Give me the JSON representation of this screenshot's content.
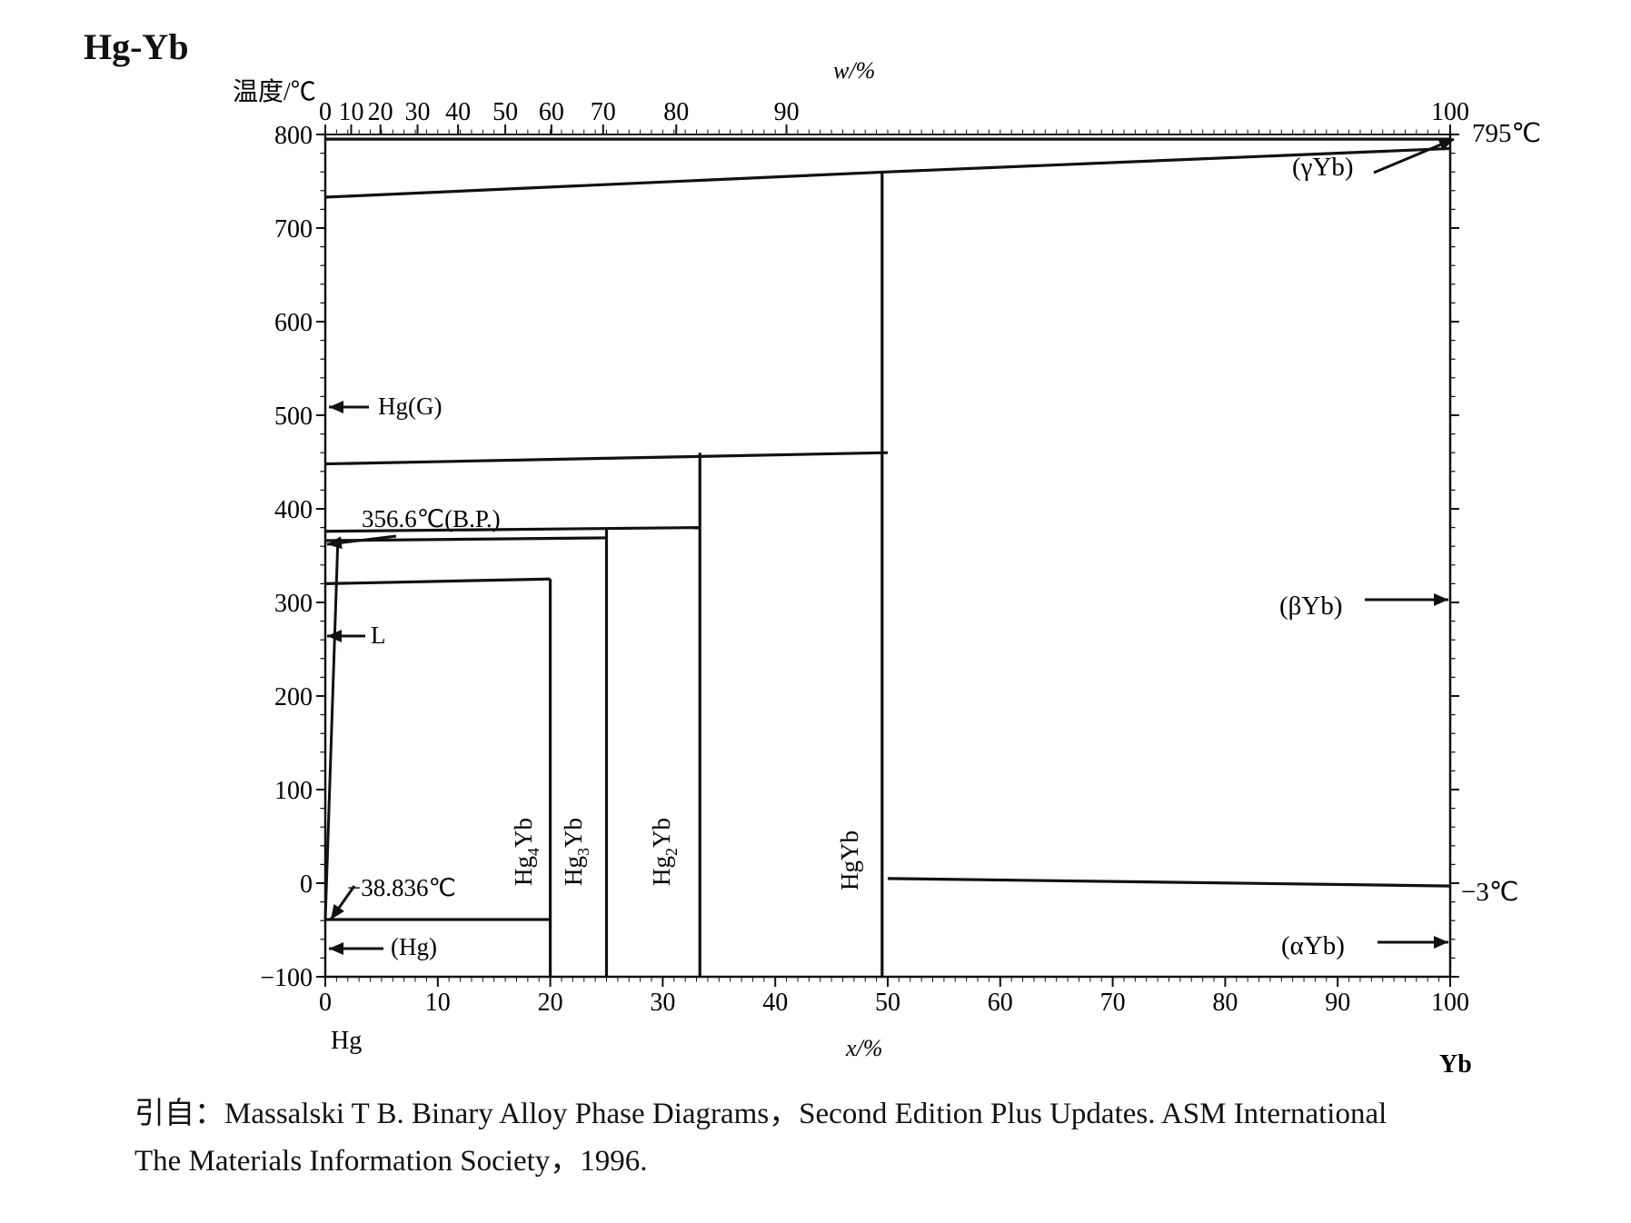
{
  "title": "Hg-Yb",
  "axes": {
    "y_label": "温度/℃",
    "bottom_label": "x/%",
    "top_label": "w/%",
    "y_ticks": [
      "800",
      "700",
      "600",
      "500",
      "400",
      "300",
      "200",
      "100",
      "0",
      "−100"
    ],
    "bottom_ticks": [
      "0",
      "10",
      "20",
      "30",
      "40",
      "50",
      "60",
      "70",
      "80",
      "90",
      "100"
    ],
    "top_ticks": [
      "0",
      "10",
      "20",
      "30",
      "40",
      "50",
      "60",
      "70",
      "80",
      "90",
      "100"
    ],
    "left_end": "Hg",
    "right_end": "Yb"
  },
  "phase_labels": {
    "hg_gas": "Hg(G)",
    "liquid": "L",
    "hg_solid": "(Hg)",
    "gamma_yb": "(γYb)",
    "beta_yb": "(βYb)",
    "alpha_yb": "(αYb)"
  },
  "compounds": [
    {
      "base": "Hg",
      "sub": "4",
      "tail": "Yb"
    },
    {
      "base": "Hg",
      "sub": "3",
      "tail": "Yb"
    },
    {
      "base": "Hg",
      "sub": "2",
      "tail": "Yb"
    },
    {
      "base": "HgYb",
      "sub": "",
      "tail": ""
    }
  ],
  "temperature_notes": {
    "melting_yb": "795℃",
    "boiling_hg": "356.6℃(B.P.)",
    "melting_hg": "−38.836℃",
    "transition_yb": "−3℃"
  },
  "citation": {
    "line1": "引自：Massalski T B. Binary Alloy Phase Diagrams，Second Edition Plus Updates. ASM International",
    "line2": "The Materials Information Society，1996."
  },
  "chart_data": {
    "type": "phase-diagram",
    "x_axis": "x/% (at.% Yb)",
    "top_axis": "w/% (wt.% Yb)",
    "xlim": [
      0,
      100
    ],
    "ylim": [
      -100,
      800
    ],
    "top_tick_positions_at_pct": [
      0,
      2.3,
      4.9,
      8.2,
      11.8,
      16.0,
      20.1,
      24.7,
      31.2,
      41.0,
      100
    ],
    "boundaries": [
      {
        "name": "Yb liquidus top",
        "points": [
          [
            0,
            795
          ],
          [
            100,
            795
          ]
        ]
      },
      {
        "name": "gas/liquid upper",
        "points": [
          [
            0,
            733
          ],
          [
            50,
            760
          ],
          [
            100,
            785
          ]
        ]
      },
      {
        "name": "HgYb peritectic",
        "points": [
          [
            0,
            448
          ],
          [
            50,
            460
          ]
        ]
      },
      {
        "name": "Hg2Yb peritectic",
        "points": [
          [
            0,
            376
          ],
          [
            33.3,
            380
          ]
        ]
      },
      {
        "name": "Hg3Yb peritectic",
        "points": [
          [
            0,
            366
          ],
          [
            25,
            369
          ]
        ]
      },
      {
        "name": "Hg4Yb peritectic",
        "points": [
          [
            0,
            320
          ],
          [
            20,
            325
          ]
        ]
      },
      {
        "name": "Hg eutectic",
        "points": [
          [
            0,
            -38.8
          ],
          [
            20,
            -38.8
          ]
        ]
      },
      {
        "name": "Yb alpha/beta",
        "points": [
          [
            50,
            5
          ],
          [
            100,
            -3
          ]
        ]
      },
      {
        "name": "HgYb",
        "points": [
          [
            49.5,
            -100
          ],
          [
            49.5,
            760
          ]
        ]
      },
      {
        "name": "Hg2Yb",
        "points": [
          [
            33.3,
            -100
          ],
          [
            33.3,
            460
          ]
        ]
      },
      {
        "name": "Hg3Yb",
        "points": [
          [
            25,
            -100
          ],
          [
            25,
            380
          ]
        ]
      },
      {
        "name": "Hg4Yb",
        "points": [
          [
            20,
            -100
          ],
          [
            20,
            325
          ]
        ]
      }
    ],
    "compound_compositions": [
      20,
      25,
      33.3,
      50
    ],
    "key_temperatures": [
      795,
      356.6,
      -38.836,
      -3
    ]
  }
}
